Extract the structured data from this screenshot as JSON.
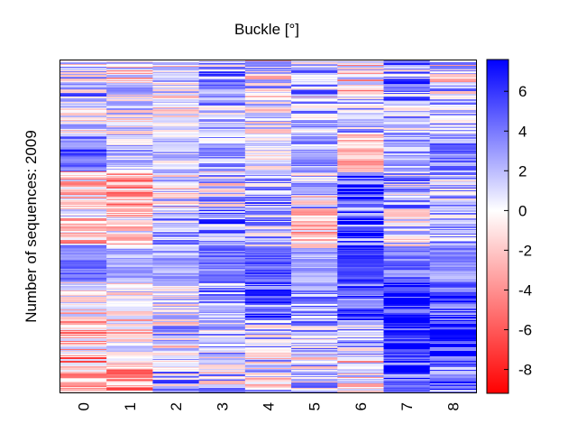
{
  "chart_data": {
    "type": "heatmap",
    "title": "Buckle [°]",
    "ylabel": "Number of sequences: 2009",
    "xlabel": "",
    "columns": [
      "0",
      "1",
      "2",
      "3",
      "4",
      "5",
      "6",
      "7",
      "8"
    ],
    "row_count": 2009,
    "colorbar": {
      "min": -9.2,
      "max": 7.6,
      "ticks": [
        6,
        4,
        2,
        0,
        -2,
        -4,
        -6,
        -8
      ],
      "tick_labels": [
        "6",
        "4",
        "2",
        "0",
        "-2",
        "-4",
        "-6",
        "-8"
      ],
      "colors": {
        "low": "#ff0000",
        "mid": "#ffffff",
        "high": "#0000ff"
      }
    },
    "bands": [
      {
        "cols": [
          1.5,
          -0.5,
          0.5,
          2.5,
          1.0,
          1.5,
          -1.0,
          2.5,
          0.5
        ],
        "noise": 4.5
      },
      {
        "cols": [
          0.5,
          1.0,
          0.0,
          2.0,
          0.5,
          2.0,
          2.0,
          1.5,
          2.5
        ],
        "noise": 3.5
      },
      {
        "cols": [
          4.5,
          1.5,
          1.5,
          2.5,
          0.5,
          2.5,
          -2.0,
          2.5,
          3.5
        ],
        "noise": 2.5
      },
      {
        "cols": [
          -2.0,
          -3.0,
          1.0,
          1.0,
          3.0,
          1.0,
          5.0,
          2.0,
          1.5
        ],
        "noise": 4.0
      },
      {
        "cols": [
          -1.0,
          -1.0,
          2.0,
          3.0,
          2.0,
          -1.5,
          5.0,
          1.0,
          3.0
        ],
        "noise": 4.0
      },
      {
        "cols": [
          4.0,
          2.5,
          2.5,
          4.0,
          5.0,
          2.5,
          6.0,
          4.0,
          3.5
        ],
        "noise": 1.5
      },
      {
        "cols": [
          -1.0,
          0.5,
          0.0,
          3.0,
          4.5,
          2.5,
          5.5,
          5.5,
          5.0
        ],
        "noise": 3.5
      },
      {
        "cols": [
          -2.0,
          -1.0,
          1.0,
          2.0,
          1.5,
          2.0,
          2.0,
          6.5,
          6.0
        ],
        "noise": 4.0
      },
      {
        "cols": [
          -3.0,
          -3.0,
          1.5,
          1.0,
          0.5,
          1.5,
          -0.5,
          6.0,
          5.0
        ],
        "noise": 4.5
      }
    ]
  }
}
